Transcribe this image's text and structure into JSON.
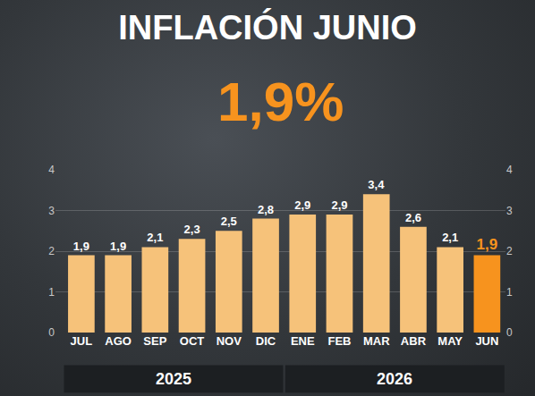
{
  "chart_data": {
    "type": "bar",
    "title": "INFLACIÓN JUNIO",
    "headline": "1,9%",
    "categories": [
      "JUL",
      "AGO",
      "SEP",
      "OCT",
      "NOV",
      "DIC",
      "ENE",
      "FEB",
      "MAR",
      "ABR",
      "MAY",
      "JUN"
    ],
    "values": [
      1.9,
      1.9,
      2.1,
      2.3,
      2.5,
      2.8,
      2.9,
      2.9,
      3.4,
      2.6,
      2.1,
      1.9
    ],
    "value_labels": [
      "1,9",
      "1,9",
      "2,1",
      "2,3",
      "2,5",
      "2,8",
      "2,9",
      "2,9",
      "3,4",
      "2,6",
      "2,1",
      "1,9"
    ],
    "colors": [
      "#f6c27a",
      "#f6c27a",
      "#f6c27a",
      "#f6c27a",
      "#f6c27a",
      "#f6c27a",
      "#f6c27a",
      "#f6c27a",
      "#f6c27a",
      "#f6c27a",
      "#f6c27a",
      "#f7931e"
    ],
    "x_groups": [
      {
        "label": "2025",
        "from": "JUL",
        "to": "DIC"
      },
      {
        "label": "2026",
        "from": "ENE",
        "to": "JUN"
      }
    ],
    "ylim": [
      0,
      4
    ],
    "yticks": [
      0,
      1,
      2,
      3,
      4
    ],
    "y2lim": [
      0,
      4
    ],
    "y2ticks": [
      0,
      1,
      2,
      3,
      4
    ],
    "grid": true,
    "data_labels": true
  }
}
